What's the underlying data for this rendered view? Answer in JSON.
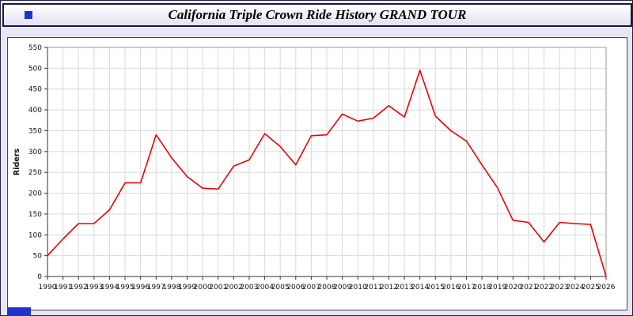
{
  "page": {
    "title": "California Triple Crown Ride History GRAND TOUR"
  },
  "chart_data": {
    "type": "line",
    "title": "California Triple Crown Ride History GRAND TOUR",
    "xlabel": "",
    "ylabel": "Riders",
    "ylim": [
      0,
      550
    ],
    "ytick_step": 50,
    "grid": true,
    "legend_position": "none",
    "line_color": "#ee0000",
    "categories": [
      "1990",
      "1991",
      "1992",
      "1993",
      "1994",
      "1995",
      "1996",
      "1997",
      "1998",
      "1999",
      "2000",
      "2001",
      "2002",
      "2003",
      "2004",
      "2005",
      "2006",
      "2007",
      "2008",
      "2009",
      "2010",
      "2011",
      "2012",
      "2013",
      "2014",
      "2015",
      "2016",
      "2017",
      "2018",
      "2019",
      "2020",
      "2021",
      "2022",
      "2023",
      "2024",
      "2025",
      "2026"
    ],
    "series": [
      {
        "name": "Riders",
        "values": [
          50,
          90,
          127,
          127,
          160,
          225,
          225,
          340,
          285,
          240,
          212,
          210,
          265,
          280,
          343,
          312,
          268,
          338,
          340,
          390,
          373,
          380,
          410,
          383,
          495,
          385,
          350,
          325,
          268,
          213,
          135,
          130,
          83,
          130,
          127,
          125,
          0
        ]
      }
    ]
  }
}
